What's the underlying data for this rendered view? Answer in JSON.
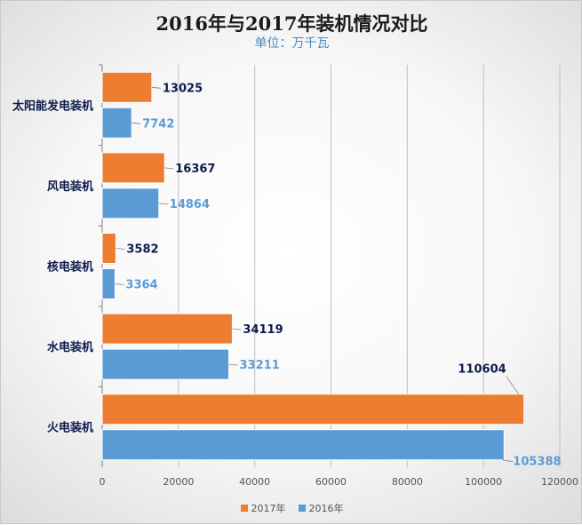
{
  "chart_data": {
    "type": "bar",
    "orientation": "horizontal",
    "title": "2016年与2017年装机情况对比",
    "subtitle": "单位：万千瓦",
    "categories": [
      "太阳能发电装机",
      "风电装机",
      "核电装机",
      "水电装机",
      "火电装机"
    ],
    "series": [
      {
        "name": "2017年",
        "color": "#ed7d31",
        "label_color": "#0d1b4b",
        "values": [
          13025,
          16367,
          3582,
          34119,
          110604
        ]
      },
      {
        "name": "2016年",
        "color": "#5b9bd5",
        "label_color": "#5b9bd5",
        "values": [
          7742,
          14864,
          3364,
          33211,
          105388
        ]
      }
    ],
    "xlim": [
      0,
      120000
    ],
    "xticks": [
      0,
      20000,
      40000,
      60000,
      80000,
      100000,
      120000
    ],
    "grid": true,
    "legend_position": "bottom"
  }
}
